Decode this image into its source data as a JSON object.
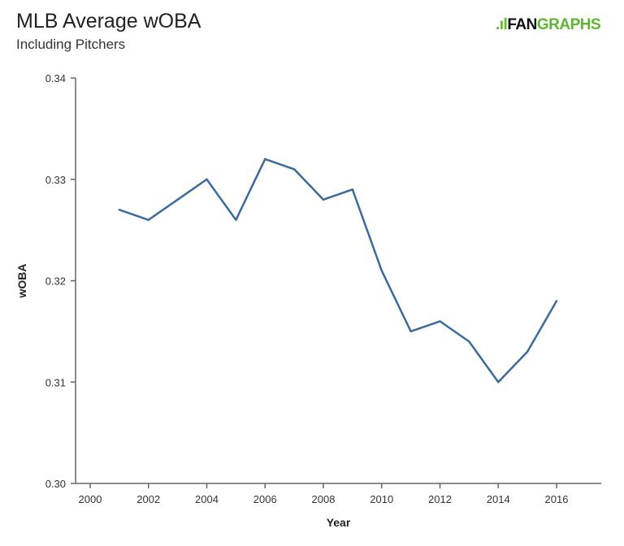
{
  "title": "MLB Average wOBA",
  "subtitle": "Including Pitchers",
  "logo": {
    "text_a": "FAN",
    "text_b": "GRAPHS",
    "accent": "#5cb82e"
  },
  "chart_data": {
    "type": "line",
    "xlabel": "Year",
    "ylabel": "wOBA",
    "xlim": [
      1999.5,
      2016.5
    ],
    "ylim": [
      0.3,
      0.34
    ],
    "xticks": [
      2000,
      2002,
      2004,
      2006,
      2008,
      2010,
      2012,
      2014,
      2016
    ],
    "yticks": [
      0.3,
      0.31,
      0.32,
      0.33,
      0.34
    ],
    "ytick_labels": [
      "0.30",
      "0.31",
      "0.32",
      "0.33",
      "0.34"
    ],
    "grid": false,
    "color": "#3b6a9c",
    "x": [
      2001,
      2002,
      2003,
      2004,
      2005,
      2006,
      2007,
      2008,
      2009,
      2010,
      2011,
      2012,
      2013,
      2014,
      2015,
      2016
    ],
    "values": [
      0.327,
      0.326,
      0.328,
      0.33,
      0.326,
      0.332,
      0.331,
      0.328,
      0.329,
      0.321,
      0.315,
      0.316,
      0.314,
      0.31,
      0.313,
      0.318
    ]
  }
}
